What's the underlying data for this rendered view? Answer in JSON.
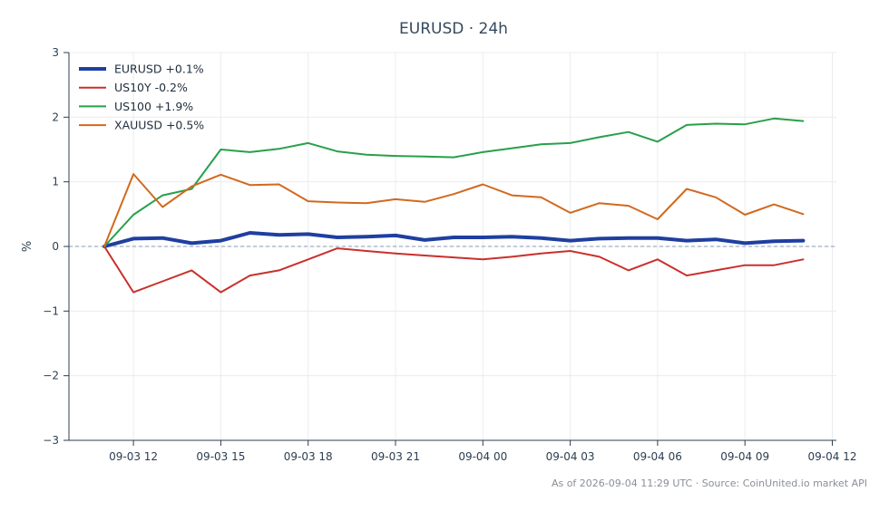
{
  "chart_data": {
    "type": "line",
    "title": "EURUSD · 24h",
    "ylabel": "%",
    "xlabel": "",
    "ylim": [
      -3,
      3
    ],
    "y_ticks": [
      3,
      2,
      1,
      0,
      -1,
      -2,
      -3
    ],
    "y_tick_labels": [
      "3",
      "2",
      "1",
      "0",
      "−1",
      "−2",
      "−3"
    ],
    "x_ticks": [
      "09-03 12",
      "09-03 15",
      "09-03 18",
      "09-03 21",
      "09-04 00",
      "09-04 03",
      "09-04 06",
      "09-04 09",
      "09-04 12"
    ],
    "x": [
      "09-03 11:00",
      "09-03 12:00",
      "09-03 13:00",
      "09-03 14:00",
      "09-03 15:00",
      "09-03 16:00",
      "09-03 17:00",
      "09-03 18:00",
      "09-03 19:00",
      "09-03 20:00",
      "09-03 21:00",
      "09-03 22:00",
      "09-03 23:00",
      "09-04 00:00",
      "09-04 01:00",
      "09-04 02:00",
      "09-04 03:00",
      "09-04 04:00",
      "09-04 05:00",
      "09-04 06:00",
      "09-04 07:00",
      "09-04 08:00",
      "09-04 09:00",
      "09-04 10:00",
      "09-04 11:00"
    ],
    "grid": true,
    "legend_position": "top-left",
    "zero_line": true,
    "series": [
      {
        "name": "EURUSD +0.1%",
        "color": "#1f3fa0",
        "width": 4,
        "values": [
          0,
          0.12,
          0.13,
          0.05,
          0.09,
          0.21,
          0.18,
          0.19,
          0.14,
          0.15,
          0.17,
          0.1,
          0.14,
          0.14,
          0.15,
          0.13,
          0.09,
          0.12,
          0.13,
          0.13,
          0.09,
          0.11,
          0.05,
          0.08,
          0.09
        ]
      },
      {
        "name": "US10Y -0.2%",
        "color": "#c9302c",
        "width": 2,
        "values": [
          0,
          -0.71,
          -0.54,
          -0.37,
          -0.71,
          -0.45,
          -0.37,
          -0.2,
          -0.03,
          -0.07,
          -0.11,
          -0.14,
          -0.17,
          -0.2,
          -0.16,
          -0.11,
          -0.07,
          -0.16,
          -0.37,
          -0.2,
          -0.45,
          -0.37,
          -0.29,
          -0.29,
          -0.2
        ]
      },
      {
        "name": "US100 +1.9%",
        "color": "#27a04a",
        "width": 2,
        "values": [
          0,
          0.49,
          0.79,
          0.89,
          1.5,
          1.46,
          1.51,
          1.6,
          1.47,
          1.42,
          1.4,
          1.39,
          1.38,
          1.46,
          1.52,
          1.58,
          1.6,
          1.69,
          1.77,
          1.62,
          1.88,
          1.9,
          1.89,
          1.98,
          1.94
        ]
      },
      {
        "name": "XAUUSD +0.5%",
        "color": "#d2691e",
        "width": 2,
        "values": [
          0,
          1.12,
          0.61,
          0.93,
          1.11,
          0.95,
          0.96,
          0.7,
          0.68,
          0.67,
          0.73,
          0.69,
          0.81,
          0.96,
          0.79,
          0.76,
          0.52,
          0.67,
          0.63,
          0.42,
          0.89,
          0.76,
          0.49,
          0.65,
          0.5
        ]
      }
    ],
    "footer": "As of 2026-09-04 11:29 UTC · Source: CoinUnited.io market API"
  }
}
